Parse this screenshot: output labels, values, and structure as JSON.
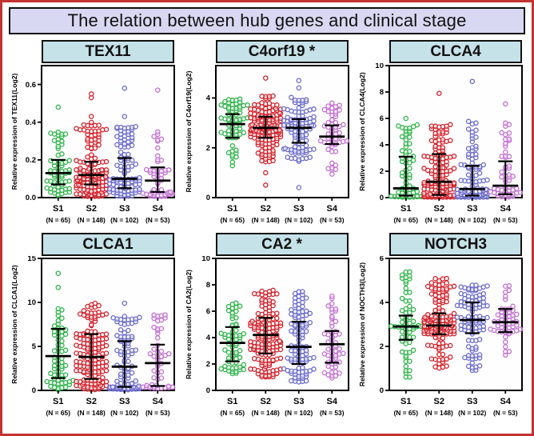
{
  "title": "The relation between hub genes and clinical stage",
  "stages": [
    {
      "label": "S1",
      "n_label": "(N = 65)",
      "n": 65
    },
    {
      "label": "S2",
      "n_label": "(N = 148)",
      "n": 148
    },
    {
      "label": "S3",
      "n_label": "(N = 102)",
      "n": 102
    },
    {
      "label": "S4",
      "n_label": "(N = 53)",
      "n": 53
    }
  ],
  "colors": {
    "stage_colors": [
      "#2eb34a",
      "#d2202a",
      "#6a6acb",
      "#c26fd2"
    ],
    "panel_header_bg": "#c5e2e8",
    "title_bar_bg": "#d8d8f2",
    "outer_border": "#c43232",
    "axis": "#000000",
    "error_bar": "#000000",
    "point_fill": "#ffffff"
  },
  "chart_data": [
    {
      "type": "scatter",
      "title": "TEX11",
      "ylabel": "Relative expression of TEX11(Log2)",
      "ylim": [
        0,
        0.7
      ],
      "ytick_values": [
        0,
        0.2,
        0.4,
        0.6
      ],
      "ytick_labels": [
        "0.0",
        "0.2",
        "0.4",
        "0.6"
      ],
      "grid": false,
      "legend_position": "none",
      "groups": [
        {
          "stage": "S1",
          "n": 65,
          "median": 0.13,
          "err_low": 0.07,
          "err_high": 0.2,
          "quantiles": [
            0.005,
            0.07,
            0.13,
            0.2,
            0.35
          ],
          "outliers": [
            0.48
          ]
        },
        {
          "stage": "S2",
          "n": 148,
          "median": 0.12,
          "err_low": 0.07,
          "err_high": 0.19,
          "quantiles": [
            0.005,
            0.07,
            0.12,
            0.19,
            0.4
          ],
          "outliers": [
            0.43,
            0.53,
            0.55
          ]
        },
        {
          "stage": "S3",
          "n": 102,
          "median": 0.1,
          "err_low": 0.05,
          "err_high": 0.21,
          "quantiles": [
            0.005,
            0.05,
            0.1,
            0.21,
            0.38
          ],
          "outliers": [
            0.43,
            0.58
          ]
        },
        {
          "stage": "S4",
          "n": 53,
          "median": 0.09,
          "err_low": 0.03,
          "err_high": 0.16,
          "quantiles": [
            0.005,
            0.03,
            0.09,
            0.16,
            0.35
          ],
          "outliers": [
            0.57
          ]
        }
      ]
    },
    {
      "type": "scatter",
      "title": "C4orf19 *",
      "ylabel": "Relative expression of C4orf19(Log2)",
      "ylim": [
        0,
        5.3
      ],
      "ytick_values": [
        0,
        2,
        4
      ],
      "ytick_labels": [
        "0",
        "2",
        "4"
      ],
      "grid": false,
      "legend_position": "none",
      "groups": [
        {
          "stage": "S1",
          "n": 65,
          "median": 2.95,
          "err_low": 2.4,
          "err_high": 3.35,
          "quantiles": [
            1.2,
            2.4,
            2.95,
            3.35,
            4.0
          ],
          "outliers": []
        },
        {
          "stage": "S2",
          "n": 148,
          "median": 2.8,
          "err_low": 2.4,
          "err_high": 3.25,
          "quantiles": [
            1.4,
            2.4,
            2.8,
            3.25,
            4.1
          ],
          "outliers": [
            0.5,
            1.0,
            4.8
          ]
        },
        {
          "stage": "S3",
          "n": 102,
          "median": 2.8,
          "err_low": 2.2,
          "err_high": 3.15,
          "quantiles": [
            1.4,
            2.2,
            2.8,
            3.15,
            4.1
          ],
          "outliers": [
            0.4,
            4.4,
            4.7
          ]
        },
        {
          "stage": "S4",
          "n": 53,
          "median": 2.45,
          "err_low": 2.15,
          "err_high": 2.9,
          "quantiles": [
            0.9,
            2.15,
            2.45,
            2.9,
            3.8
          ],
          "outliers": [
            1.3
          ]
        }
      ]
    },
    {
      "type": "scatter",
      "title": "CLCA4",
      "ylabel": "Relative expression of CLCA4(Log2)",
      "ylim": [
        0,
        10
      ],
      "ytick_values": [
        0,
        2,
        4,
        6,
        8,
        10
      ],
      "ytick_labels": [
        "0",
        "2",
        "4",
        "6",
        "8",
        "10"
      ],
      "grid": false,
      "legend_position": "none",
      "groups": [
        {
          "stage": "S1",
          "n": 65,
          "median": 0.7,
          "err_low": 0.15,
          "err_high": 3.1,
          "quantiles": [
            0.02,
            0.15,
            0.7,
            3.1,
            5.6
          ],
          "outliers": [
            6.0
          ]
        },
        {
          "stage": "S2",
          "n": 148,
          "median": 1.2,
          "err_low": 0.2,
          "err_high": 3.3,
          "quantiles": [
            0.02,
            0.2,
            1.2,
            3.3,
            5.8
          ],
          "outliers": [
            7.9
          ]
        },
        {
          "stage": "S3",
          "n": 102,
          "median": 0.65,
          "err_low": 0.15,
          "err_high": 2.4,
          "quantiles": [
            0.02,
            0.15,
            0.65,
            2.4,
            5.8
          ],
          "outliers": [
            8.8
          ]
        },
        {
          "stage": "S4",
          "n": 53,
          "median": 0.9,
          "err_low": 0.25,
          "err_high": 2.75,
          "quantiles": [
            0.02,
            0.25,
            0.9,
            2.75,
            5.7
          ],
          "outliers": [
            7.1
          ]
        }
      ]
    },
    {
      "type": "scatter",
      "title": "CLCA1",
      "ylabel": "Relative expression of CLCA1(Log2)",
      "ylim": [
        0,
        15
      ],
      "ytick_values": [
        0,
        5,
        10,
        15
      ],
      "ytick_labels": [
        "0",
        "5",
        "10",
        "15"
      ],
      "grid": false,
      "legend_position": "none",
      "groups": [
        {
          "stage": "S1",
          "n": 65,
          "median": 3.9,
          "err_low": 1.4,
          "err_high": 7.0,
          "quantiles": [
            0.05,
            1.4,
            3.9,
            7.0,
            9.6
          ],
          "outliers": [
            11.7,
            13.3
          ]
        },
        {
          "stage": "S2",
          "n": 148,
          "median": 3.8,
          "err_low": 1.3,
          "err_high": 6.4,
          "quantiles": [
            0.05,
            1.3,
            3.8,
            6.4,
            10.1
          ],
          "outliers": []
        },
        {
          "stage": "S3",
          "n": 102,
          "median": 2.7,
          "err_low": 0.4,
          "err_high": 5.6,
          "quantiles": [
            0.05,
            0.4,
            2.7,
            5.6,
            8.5
          ],
          "outliers": [
            9.9
          ]
        },
        {
          "stage": "S4",
          "n": 53,
          "median": 3.1,
          "err_low": 0.5,
          "err_high": 5.2,
          "quantiles": [
            0.2,
            0.5,
            3.1,
            5.2,
            8.9
          ],
          "outliers": []
        }
      ]
    },
    {
      "type": "scatter",
      "title": "CA2 *",
      "ylabel": "Relative expression of CA2(Log2)",
      "ylim": [
        0,
        10
      ],
      "ytick_values": [
        0,
        2,
        4,
        6,
        8,
        10
      ],
      "ytick_labels": [
        "0",
        "2",
        "4",
        "6",
        "8",
        "10"
      ],
      "grid": false,
      "legend_position": "none",
      "groups": [
        {
          "stage": "S1",
          "n": 65,
          "median": 3.6,
          "err_low": 2.2,
          "err_high": 4.8,
          "quantiles": [
            1.2,
            2.2,
            3.6,
            4.8,
            6.7
          ],
          "outliers": []
        },
        {
          "stage": "S2",
          "n": 148,
          "median": 4.2,
          "err_low": 2.8,
          "err_high": 5.5,
          "quantiles": [
            1.0,
            2.8,
            4.2,
            5.5,
            7.6
          ],
          "outliers": []
        },
        {
          "stage": "S3",
          "n": 102,
          "median": 3.3,
          "err_low": 2.0,
          "err_high": 5.2,
          "quantiles": [
            0.6,
            2.0,
            3.3,
            5.2,
            7.6
          ],
          "outliers": []
        },
        {
          "stage": "S4",
          "n": 53,
          "median": 3.5,
          "err_low": 2.1,
          "err_high": 4.5,
          "quantiles": [
            0.7,
            2.1,
            3.5,
            4.5,
            7.3
          ],
          "outliers": []
        }
      ]
    },
    {
      "type": "scatter",
      "title": "NOTCH3",
      "ylabel": "Relative expression of NOCTH3(Log2)",
      "ylim": [
        0,
        6
      ],
      "ytick_values": [
        0,
        2,
        4,
        6
      ],
      "ytick_labels": [
        "0",
        "2",
        "4",
        "6"
      ],
      "grid": false,
      "legend_position": "none",
      "groups": [
        {
          "stage": "S1",
          "n": 65,
          "median": 2.9,
          "err_low": 2.3,
          "err_high": 3.4,
          "quantiles": [
            0.6,
            2.3,
            2.9,
            3.4,
            5.4
          ],
          "outliers": []
        },
        {
          "stage": "S2",
          "n": 148,
          "median": 2.95,
          "err_low": 2.55,
          "err_high": 3.5,
          "quantiles": [
            1.0,
            2.55,
            2.95,
            3.5,
            5.1
          ],
          "outliers": []
        },
        {
          "stage": "S3",
          "n": 102,
          "median": 3.2,
          "err_low": 2.6,
          "err_high": 4.0,
          "quantiles": [
            0.9,
            2.6,
            3.2,
            4.0,
            4.8
          ],
          "outliers": []
        },
        {
          "stage": "S4",
          "n": 53,
          "median": 3.1,
          "err_low": 2.65,
          "err_high": 3.7,
          "quantiles": [
            1.6,
            2.65,
            3.1,
            3.7,
            4.8
          ],
          "outliers": []
        }
      ]
    }
  ]
}
